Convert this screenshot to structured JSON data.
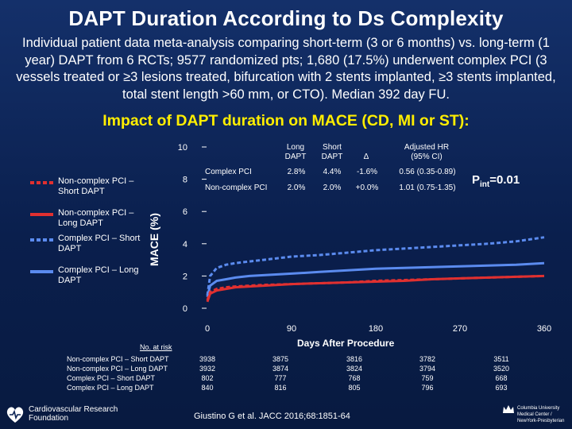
{
  "slide": {
    "title": "DAPT Duration According to Ds Complexity",
    "subtitle": "Individual patient data meta-analysis comparing short-term (3 or 6 months) vs. long-term (1 year) DAPT from 6 RCTs; 9577 randomized pts; 1,680 (17.5%) underwent complex PCI (3 vessels treated or ≥3 lesions treated, bifurcation with 2 stents implanted, ≥3 stents implanted, total stent length >60 mm, or CTO). Median 392 day FU.",
    "chart_heading": "Impact of DAPT duration on MACE (CD, MI or ST):",
    "citation": "Giustino G et al. JACC 2016;68:1851-64",
    "logo_left": "Cardiovascular Research Foundation",
    "logo_right": "Columbia University Medical Center / NewYork-Presbyterian"
  },
  "colors": {
    "background": "#0d2456",
    "heading": "#ffee00",
    "noncomplex_short": "#e03030",
    "noncomplex_long": "#e03030",
    "complex_short": "#5b8bef",
    "complex_long": "#5b8bef"
  },
  "legend": [
    {
      "label": "Non-complex PCI – Short DAPT",
      "color": "#e03030",
      "dashed": true
    },
    {
      "label": "Non-complex PCI – Long DAPT",
      "color": "#e03030",
      "dashed": false
    },
    {
      "label": "Complex PCI – Short DAPT",
      "color": "#5b8bef",
      "dashed": true
    },
    {
      "label": "Complex PCI – Long DAPT",
      "color": "#5b8bef",
      "dashed": false
    }
  ],
  "table": {
    "headers": [
      "Long DAPT",
      "Short DAPT",
      "Δ",
      "Adjusted HR (95% CI)"
    ],
    "rows": [
      {
        "group": "Complex PCI",
        "long": "2.8%",
        "short": "4.4%",
        "delta": "-1.6%",
        "hr": "0.56 (0.35-0.89)"
      },
      {
        "group": "Non-complex PCI",
        "long": "2.0%",
        "short": "2.0%",
        "delta": "+0.0%",
        "hr": "1.01 (0.75-1.35)"
      }
    ],
    "pint_label": "P",
    "pint_sub": "int",
    "pint_value": "=0.01"
  },
  "risk_table": {
    "title": "No. at risk",
    "rows": [
      {
        "label": "Non-complex PCI – Short DAPT",
        "values": [
          "3938",
          "3875",
          "3816",
          "3782",
          "3511"
        ]
      },
      {
        "label": "Non-complex PCI – Long DAPT",
        "values": [
          "3932",
          "3874",
          "3824",
          "3794",
          "3520"
        ]
      },
      {
        "label": "Complex PCI – Short DAPT",
        "values": [
          "802",
          "777",
          "768",
          "759",
          "668"
        ]
      },
      {
        "label": "Complex PCI – Long DAPT",
        "values": [
          "840",
          "816",
          "805",
          "796",
          "693"
        ]
      }
    ]
  },
  "chart_data": {
    "type": "line",
    "title": "Impact of DAPT duration on MACE (CD, MI or ST)",
    "xlabel": "Days After Procedure",
    "ylabel": "MACE (%)",
    "xlim": [
      0,
      360
    ],
    "ylim": [
      0,
      10
    ],
    "xticks": [
      0,
      90,
      180,
      270,
      360
    ],
    "yticks": [
      0,
      2,
      4,
      6,
      8,
      10
    ],
    "series": [
      {
        "name": "Complex PCI – Short DAPT",
        "color": "#5b8bef",
        "dashed": true,
        "x": [
          0,
          3,
          10,
          20,
          30,
          45,
          60,
          90,
          120,
          150,
          180,
          210,
          240,
          270,
          300,
          330,
          360
        ],
        "y": [
          0.8,
          2.0,
          2.5,
          2.7,
          2.8,
          2.9,
          3.0,
          3.2,
          3.3,
          3.45,
          3.6,
          3.7,
          3.8,
          3.9,
          4.0,
          4.15,
          4.4
        ]
      },
      {
        "name": "Complex PCI – Long DAPT",
        "color": "#5b8bef",
        "dashed": false,
        "x": [
          0,
          3,
          10,
          20,
          30,
          45,
          60,
          90,
          120,
          150,
          180,
          210,
          240,
          270,
          300,
          330,
          360
        ],
        "y": [
          0.7,
          1.4,
          1.7,
          1.8,
          1.9,
          2.0,
          2.05,
          2.15,
          2.25,
          2.35,
          2.45,
          2.5,
          2.55,
          2.6,
          2.65,
          2.7,
          2.8
        ]
      },
      {
        "name": "Non-complex PCI – Short DAPT",
        "color": "#e03030",
        "dashed": true,
        "x": [
          0,
          3,
          10,
          20,
          30,
          45,
          60,
          90,
          120,
          150,
          180,
          210,
          240,
          270,
          300,
          330,
          360
        ],
        "y": [
          0.5,
          1.0,
          1.2,
          1.3,
          1.35,
          1.4,
          1.45,
          1.5,
          1.55,
          1.6,
          1.7,
          1.75,
          1.8,
          1.85,
          1.9,
          1.95,
          2.0
        ]
      },
      {
        "name": "Non-complex PCI – Long DAPT",
        "color": "#e03030",
        "dashed": false,
        "x": [
          0,
          3,
          10,
          20,
          30,
          45,
          60,
          90,
          120,
          150,
          180,
          210,
          240,
          270,
          300,
          330,
          360
        ],
        "y": [
          0.4,
          0.9,
          1.1,
          1.2,
          1.3,
          1.35,
          1.4,
          1.5,
          1.55,
          1.6,
          1.65,
          1.7,
          1.8,
          1.85,
          1.9,
          1.95,
          2.0
        ]
      }
    ]
  }
}
